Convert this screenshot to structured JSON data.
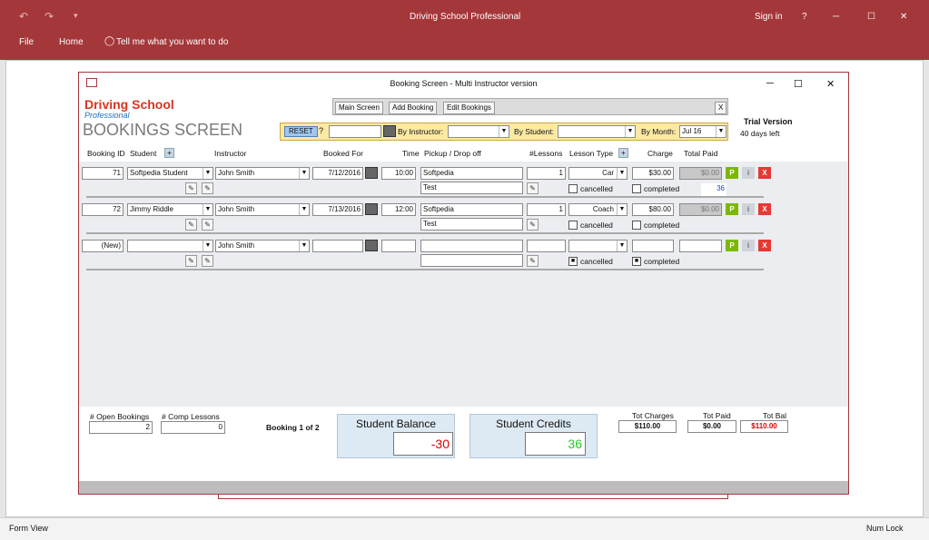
{
  "app": {
    "title": "Driving School Professional",
    "sign_in": "Sign in",
    "help": "?",
    "minimize": "─",
    "maximize": "☐",
    "close": "✕",
    "undo": "↶",
    "redo": "↷",
    "qat": "▾"
  },
  "ribbon": {
    "file": "File",
    "home": "Home",
    "tell_me": "Tell me what you want to do"
  },
  "form": {
    "caption": "Booking Screen - Multi Instructor version",
    "minimize": "─",
    "maximize": "☐",
    "close": "✕",
    "logo_line1": "Driving School",
    "logo_line2": "Professional",
    "screen_title": "BOOKINGS SCREEN",
    "trial": "Trial Version",
    "days_left": "40 days left"
  },
  "nav": {
    "main": "Main Screen",
    "add": "Add Booking",
    "edit": "Edit Bookings",
    "close": "X"
  },
  "filters": {
    "reset": "RESET",
    "question": "?",
    "by_instructor": "By Instructor:",
    "by_student": "By Student:",
    "by_month": "By Month:",
    "month_value": "Jul 16"
  },
  "columns": {
    "booking_id": "Booking ID",
    "student": "Student",
    "plus1": "+",
    "instructor": "Instructor",
    "booked_for": "Booked For",
    "time": "Time",
    "pickup": "Pickup / Drop off",
    "lessons": "#Lessons",
    "lesson_type": "Lesson Type",
    "plus2": "+",
    "charge": "Charge",
    "total_paid": "Total Paid"
  },
  "rows": [
    {
      "id": "71",
      "student": "Softpedia Student",
      "instructor": "John Smith",
      "date": "7/12/2016",
      "time": "10:00",
      "pickup": "Softpedia",
      "dropoff": "Test",
      "lessons": "1",
      "type": "Car",
      "charge": "$30.00",
      "paid": "$0.00",
      "cancelled": "cancelled",
      "completed": "completed",
      "credit": "36",
      "p": "P",
      "i": "i",
      "x": "X"
    },
    {
      "id": "72",
      "student": "Jimmy Riddle",
      "instructor": "John Smith",
      "date": "7/13/2016",
      "time": "12:00",
      "pickup": "Softpedia",
      "dropoff": "Test",
      "lessons": "1",
      "type": "Coach",
      "charge": "$80.00",
      "paid": "$0.00",
      "cancelled": "cancelled",
      "completed": "completed",
      "credit": "",
      "p": "P",
      "i": "i",
      "x": "X"
    },
    {
      "id": "(New)",
      "student": "",
      "instructor": "John Smith",
      "date": "",
      "time": "",
      "pickup": "",
      "dropoff": "",
      "lessons": "",
      "type": "",
      "charge": "",
      "paid": "",
      "cancelled": "cancelled",
      "completed": "completed",
      "credit": "",
      "p": "P",
      "i": "i",
      "x": "X"
    }
  ],
  "footer": {
    "open_bookings_label": "# Open Bookings",
    "open_bookings": "2",
    "comp_lessons_label": "# Comp Lessons",
    "comp_lessons": "0",
    "booking_of": "Booking 1 of 2",
    "student_balance_label": "Student Balance",
    "student_balance": "-30",
    "student_credits_label": "Student Credits",
    "student_credits": "36",
    "tot_charges_label": "Tot Charges",
    "tot_charges": "$110.00",
    "tot_paid_label": "Tot Paid",
    "tot_paid": "$0.00",
    "tot_bal_label": "Tot Bal",
    "tot_bal": "$110.00"
  },
  "status": {
    "left": "Form View",
    "right": "Num Lock"
  },
  "colors": {
    "accent": "#a4373a",
    "balance_red": "#e00000",
    "credit_green": "#22cc22"
  }
}
